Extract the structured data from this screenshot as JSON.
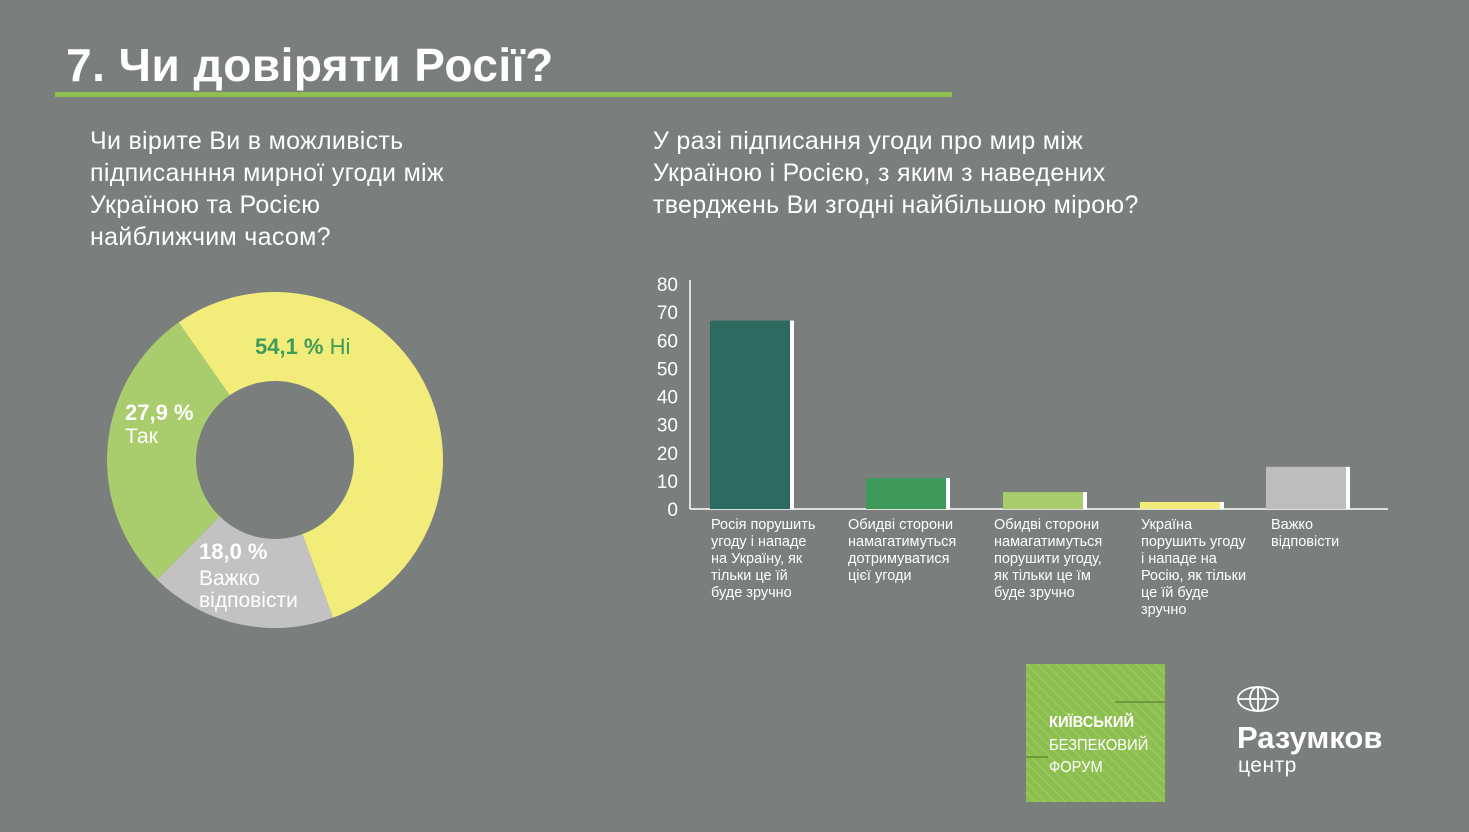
{
  "page": {
    "title": "7. Чи довіряти Росії?",
    "question_left_lines": [
      "Чи вірите Ви в можливість",
      "підписанння мирної угоди між",
      "Україною та Росією",
      "найближчим часом?"
    ],
    "question_right_lines": [
      "У разі підписання угоди про мир між",
      "Україною і Росією, з яким з наведених",
      "тверджень Ви згодні найбільшою мірою?"
    ]
  },
  "colors": {
    "background": "#7a7e7c",
    "accent_green": "#8cbf4f",
    "donut_no": "#f2ec7a",
    "donut_yes": "#a9cd6c",
    "donut_hard": "#c2c2c2",
    "pct_no": "#3f9a5a",
    "bar_1": "#2c6a5f",
    "bar_2": "#3f9a5a",
    "bar_3": "#a9cd6c",
    "bar_4": "#f2ec7a",
    "bar_5": "#bdbdbd"
  },
  "chart_data": [
    {
      "type": "pie",
      "categories": [
        "Ні",
        "Так",
        "Важко відповісти"
      ],
      "values": [
        54.1,
        27.9,
        18.0
      ],
      "value_labels": [
        "54,1 %",
        "27,9 %",
        "18,0 %"
      ],
      "slice_text": [
        "Ні",
        "Так",
        "Важко\nвідповісти"
      ]
    },
    {
      "type": "bar",
      "categories": [
        "Росія порушить угоду і нападе на Україну, як тільки це їй буде зручно",
        "Обидві сторони намагатимуться дотримуватися цієї угоди",
        "Обидві сторони намагатимуться порушити угоду, як тільки це їм буде зручно",
        "Україна порушить угоду і нападе на Росію, як тільки це їй буде зручно",
        "Важко відповісти"
      ],
      "category_lines": [
        [
          "Росія порушить",
          "угоду і нападе",
          "на Україну, як",
          "тільки це їй",
          "буде зручно"
        ],
        [
          "Обидві сторони",
          "намагатимуться",
          "дотримуватися",
          "цієї угоди"
        ],
        [
          "Обидві сторони",
          "намагатимуться",
          "порушити угоду,",
          "як тільки це їм",
          "буде зручно"
        ],
        [
          "Україна",
          "порушить угоду",
          "і нападе на",
          "Росію, як тільки",
          "це їй буде",
          "зручно"
        ],
        [
          "Важко",
          "відповісти"
        ]
      ],
      "values": [
        67,
        11,
        6,
        2.5,
        15
      ],
      "ylim": [
        0,
        80
      ],
      "yticks": [
        "0",
        "10",
        "20",
        "30",
        "40",
        "50",
        "60",
        "70",
        "80"
      ],
      "grid": false
    }
  ],
  "logos": {
    "kbf_lines": [
      "КИЇВСЬКИЙ",
      "БЕЗПЕКОВИЙ",
      "ФОРУМ"
    ],
    "razumkov_name": "Разумков",
    "razumkov_sub": "центр"
  }
}
